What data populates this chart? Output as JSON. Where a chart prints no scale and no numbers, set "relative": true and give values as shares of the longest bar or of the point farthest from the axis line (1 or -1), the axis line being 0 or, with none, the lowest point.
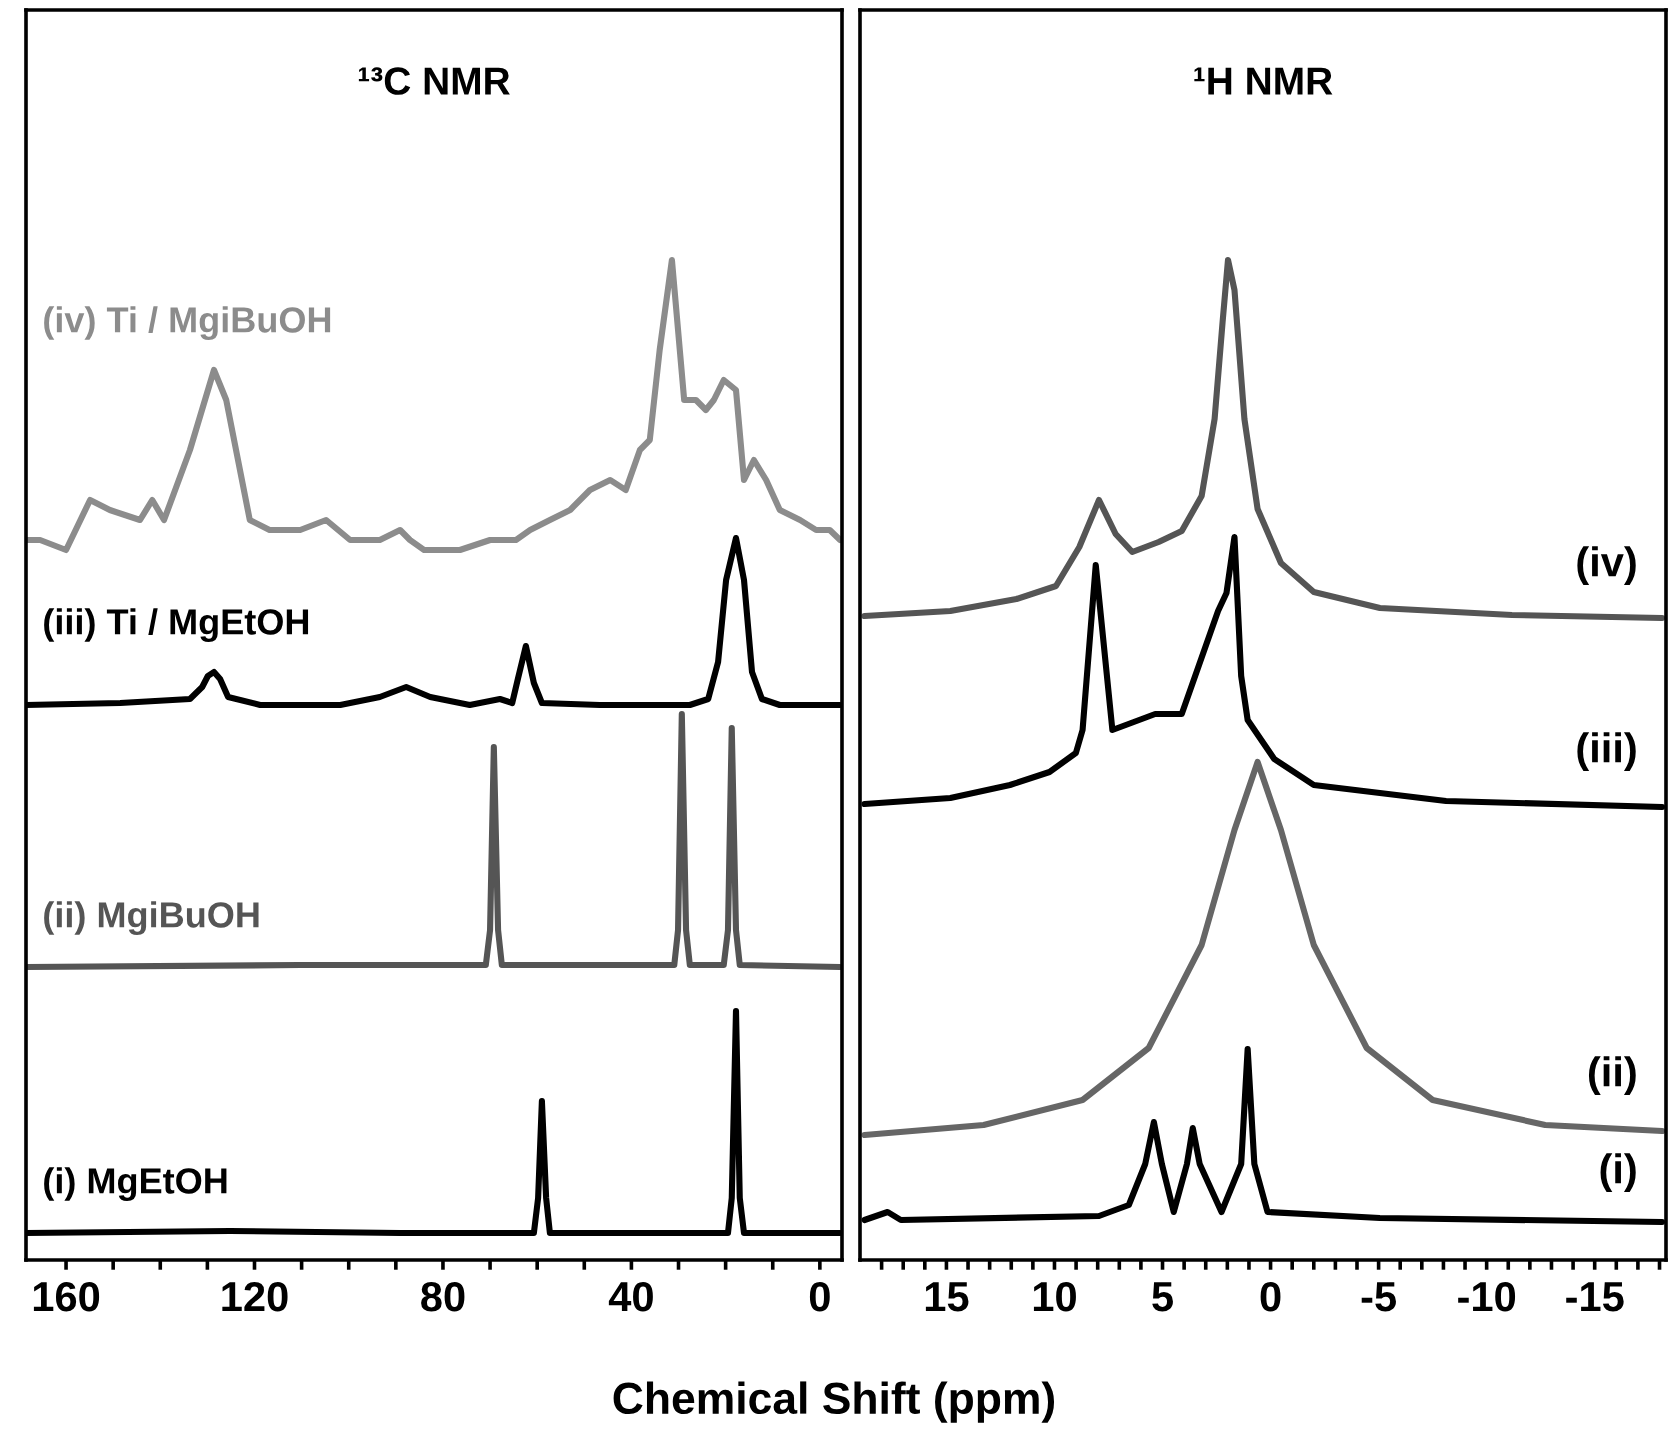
{
  "chart_data": [
    {
      "type": "line",
      "title": "¹³C NMR",
      "xlabel": "Chemical Shift (ppm)",
      "relative": true,
      "tick_labels": "x",
      "grid": false,
      "legend": false,
      "marker": "none",
      "line_style": "solid",
      "xlim": [
        168.5,
        -4.7
      ],
      "xticks": [
        160,
        {
          "value": 150,
          "label": null
        },
        {
          "value": 140,
          "label": null
        },
        {
          "value": 130,
          "label": null
        },
        120,
        {
          "value": 110,
          "label": null
        },
        {
          "value": 100,
          "label": null
        },
        {
          "value": 90,
          "label": null
        },
        80,
        {
          "value": 70,
          "label": null
        },
        {
          "value": 60,
          "label": null
        },
        {
          "value": 50,
          "label": null
        },
        40,
        {
          "value": 30,
          "label": null
        },
        {
          "value": 20,
          "label": null
        },
        {
          "value": 10,
          "label": null
        },
        0
      ],
      "series": [
        {
          "name": "(iv) Ti / MgiBuOH",
          "color": "#8c8c8c",
          "x": [
            168.5,
            165.5,
            160,
            154.9,
            150.7,
            144.3,
            141.7,
            139.2,
            133.7,
            128.6,
            126.0,
            121.0,
            116.8,
            110.3,
            104.8,
            99.7,
            93.4,
            89.1,
            87.0,
            84.0,
            76.4,
            70.0,
            64.5,
            61.5,
            57.3,
            53.0,
            48.8,
            44.5,
            41.2,
            38.2,
            36.1,
            34.0,
            31.4,
            28.8,
            26.3,
            24.2,
            22.5,
            20.4,
            17.8,
            16.1,
            14.0,
            11.4,
            8.5,
            4.2,
            0.8,
            -2.1,
            -4.3
          ],
          "values": [
            0.72,
            0.72,
            0.71,
            0.76,
            0.75,
            0.74,
            0.76,
            0.74,
            0.81,
            0.89,
            0.86,
            0.74,
            0.73,
            0.73,
            0.74,
            0.72,
            0.72,
            0.73,
            0.72,
            0.71,
            0.71,
            0.72,
            0.72,
            0.73,
            0.74,
            0.75,
            0.77,
            0.78,
            0.77,
            0.81,
            0.82,
            0.91,
            1.0,
            0.86,
            0.86,
            0.85,
            0.86,
            0.88,
            0.87,
            0.78,
            0.8,
            0.78,
            0.75,
            0.74,
            0.73,
            0.73,
            0.72
          ]
        },
        {
          "name": "(iii) Ti / MgEtOH",
          "color": "#000000",
          "x": [
            168.5,
            148.5,
            133.7,
            131.1,
            129.9,
            128.6,
            127.3,
            125.6,
            118.8,
            101.8,
            93.4,
            87.8,
            82.7,
            74.3,
            67.9,
            65.3,
            64.1,
            62.4,
            60.7,
            59.0,
            46.7,
            27.6,
            23.7,
            21.6,
            19.9,
            17.8,
            16.1,
            14.4,
            12.3,
            8.5,
            -4.3
          ],
          "values": [
            0.555,
            0.557,
            0.561,
            0.573,
            0.584,
            0.588,
            0.581,
            0.563,
            0.555,
            0.555,
            0.563,
            0.573,
            0.563,
            0.555,
            0.561,
            0.557,
            0.581,
            0.614,
            0.577,
            0.557,
            0.555,
            0.555,
            0.561,
            0.598,
            0.68,
            0.722,
            0.68,
            0.588,
            0.561,
            0.555,
            0.555
          ]
        },
        {
          "name": "(ii) MgiBuOH",
          "color": "#555555",
          "x": [
            168.5,
            110.3,
            70.9,
            70.0,
            69.2,
            68.3,
            67.5,
            30.9,
            30.1,
            29.3,
            28.4,
            27.6,
            20.4,
            19.5,
            18.7,
            17.8,
            17.0,
            -4.3
          ],
          "values": [
            0.293,
            0.295,
            0.295,
            0.33,
            0.513,
            0.33,
            0.295,
            0.295,
            0.33,
            0.546,
            0.33,
            0.295,
            0.295,
            0.33,
            0.532,
            0.33,
            0.295,
            0.293
          ]
        },
        {
          "name": "(i) MgEtOH",
          "color": "#000000",
          "x": [
            168.5,
            125.2,
            89.1,
            60.7,
            59.8,
            59.0,
            58.1,
            57.3,
            19.5,
            18.7,
            17.8,
            17.0,
            16.1,
            -4.3
          ],
          "values": [
            0.027,
            0.029,
            0.027,
            0.027,
            0.062,
            0.159,
            0.062,
            0.027,
            0.027,
            0.062,
            0.249,
            0.062,
            0.027,
            0.027
          ]
        }
      ]
    },
    {
      "type": "line",
      "title": "¹H NMR",
      "relative": true,
      "tick_labels": "x",
      "grid": false,
      "legend": false,
      "marker": "none",
      "line_style": "solid",
      "xlim": [
        19,
        -18.3
      ],
      "xticks": [
        {
          "value": 18,
          "label": null
        },
        {
          "value": 17,
          "label": null
        },
        {
          "value": 16,
          "label": null
        },
        15,
        {
          "value": 14,
          "label": null
        },
        {
          "value": 13,
          "label": null
        },
        {
          "value": 12,
          "label": null
        },
        {
          "value": 11,
          "label": null
        },
        10,
        {
          "value": 9,
          "label": null
        },
        {
          "value": 8,
          "label": null
        },
        {
          "value": 7,
          "label": null
        },
        {
          "value": 6,
          "label": null
        },
        5,
        {
          "value": 4,
          "label": null
        },
        {
          "value": 3,
          "label": null
        },
        {
          "value": 2,
          "label": null
        },
        {
          "value": 1,
          "label": null
        },
        0,
        {
          "value": -1,
          "label": null
        },
        {
          "value": -2,
          "label": null
        },
        {
          "value": -3,
          "label": null
        },
        {
          "value": -4,
          "label": null
        },
        -5,
        {
          "value": -6,
          "label": null
        },
        {
          "value": -7,
          "label": null
        },
        {
          "value": -8,
          "label": null
        },
        {
          "value": -9,
          "label": null
        },
        -10,
        {
          "value": -11,
          "label": null
        },
        {
          "value": -12,
          "label": null
        },
        {
          "value": -13,
          "label": null
        },
        {
          "value": -14,
          "label": null
        },
        -15,
        {
          "value": -16,
          "label": null
        },
        {
          "value": -17,
          "label": null
        },
        {
          "value": -18,
          "label": null
        }
      ],
      "series": [
        {
          "name": "(iv)",
          "color": "#555555",
          "x": [
            18.79,
            14.82,
            11.76,
            9.93,
            8.85,
            7.94,
            7.17,
            6.4,
            5.18,
            4.11,
            3.19,
            2.59,
            2.22,
            1.97,
            1.67,
            1.21,
            0.6,
            -0.48,
            -2.0,
            -5.06,
            -11.17,
            -18.12
          ],
          "values": [
            0.644,
            0.649,
            0.661,
            0.674,
            0.713,
            0.76,
            0.726,
            0.708,
            0.718,
            0.729,
            0.764,
            0.841,
            0.938,
            1.0,
            0.97,
            0.841,
            0.751,
            0.697,
            0.668,
            0.652,
            0.645,
            0.642
          ]
        },
        {
          "name": "(iii)",
          "color": "#000000",
          "x": [
            18.79,
            14.82,
            12.06,
            10.23,
            9.01,
            8.7,
            8.09,
            7.32,
            5.34,
            4.11,
            2.43,
            2.04,
            1.67,
            1.36,
            1.06,
            -0.17,
            -2.0,
            -8.12,
            -18.12
          ],
          "values": [
            0.456,
            0.462,
            0.475,
            0.488,
            0.507,
            0.53,
            0.695,
            0.53,
            0.546,
            0.546,
            0.649,
            0.667,
            0.723,
            0.584,
            0.54,
            0.501,
            0.475,
            0.459,
            0.453
          ]
        },
        {
          "name": "(ii)",
          "color": "#666666",
          "x": [
            18.79,
            13.28,
            8.7,
            5.64,
            3.19,
            1.67,
            0.6,
            -0.48,
            -2.0,
            -4.45,
            -7.5,
            -12.71,
            -18.12
          ],
          "values": [
            0.125,
            0.135,
            0.16,
            0.212,
            0.315,
            0.43,
            0.498,
            0.43,
            0.315,
            0.212,
            0.16,
            0.135,
            0.129
          ]
        },
        {
          "name": "(i)",
          "color": "#000000",
          "x": [
            18.79,
            17.72,
            17.11,
            7.94,
            6.56,
            5.8,
            5.4,
            5.03,
            4.48,
            3.87,
            3.6,
            3.28,
            2.27,
            1.36,
            1.06,
            0.75,
            0.14,
            -5.06,
            -18.12
          ],
          "values": [
            0.04,
            0.048,
            0.04,
            0.044,
            0.055,
            0.096,
            0.138,
            0.096,
            0.048,
            0.096,
            0.132,
            0.096,
            0.048,
            0.096,
            0.211,
            0.096,
            0.048,
            0.042,
            0.038
          ]
        }
      ]
    }
  ]
}
